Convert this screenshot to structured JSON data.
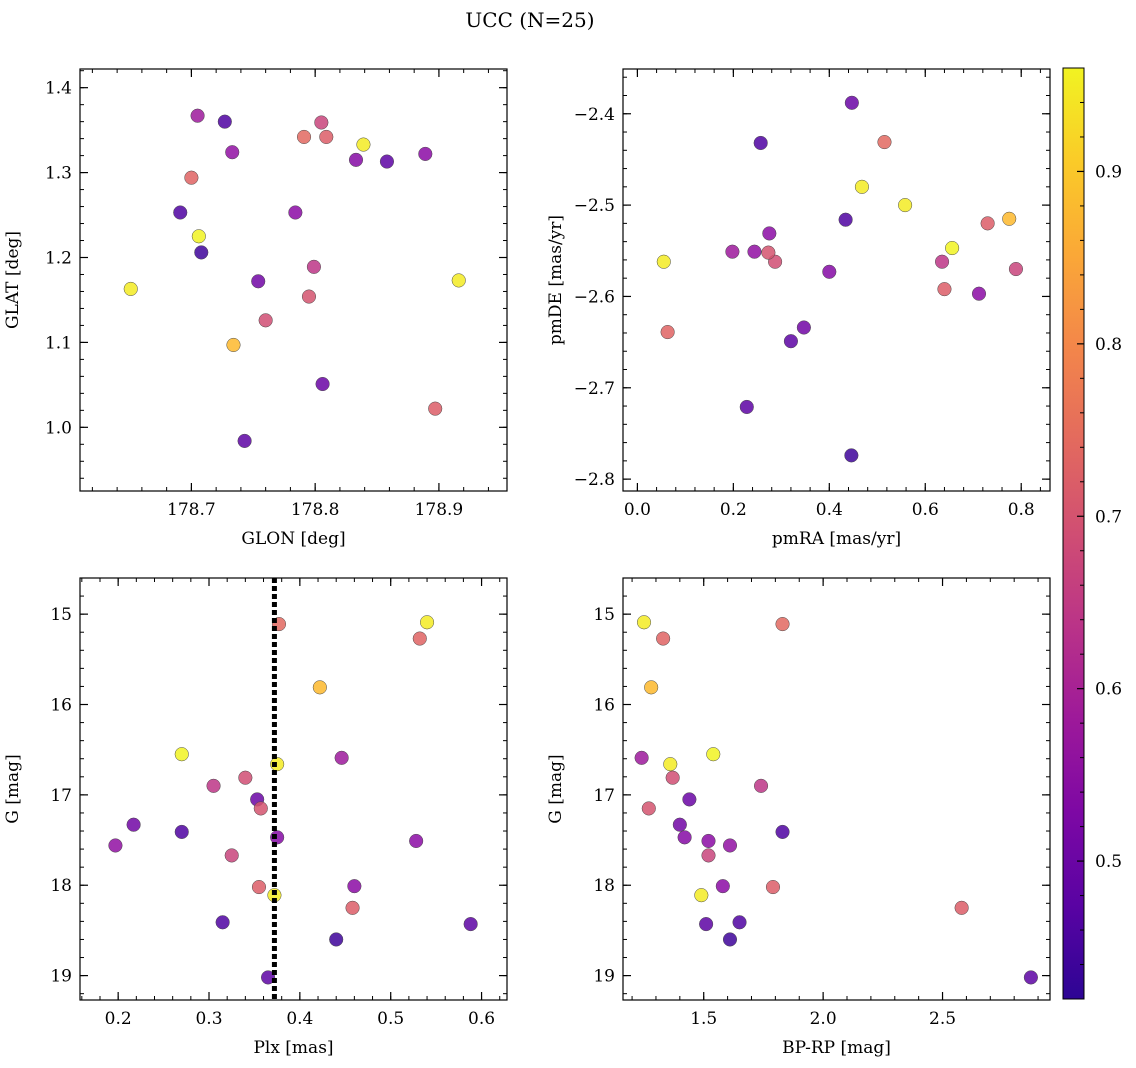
{
  "figure": {
    "title": "UCC (N=25)"
  },
  "colorbar": {
    "vmin": 0.42,
    "vmax": 0.96,
    "ticks": [
      0.5,
      0.6,
      0.7,
      0.8,
      0.9
    ],
    "cmap": "plasma"
  },
  "members": [
    {
      "glon": 178.651,
      "glat": 1.163,
      "pmra": 0.055,
      "pmde": -2.562,
      "plx": 0.54,
      "g": 15.09,
      "bprp": 1.25,
      "p": 0.95
    },
    {
      "glon": 178.705,
      "glat": 1.367,
      "pmra": 0.198,
      "pmde": -2.551,
      "plx": 0.446,
      "g": 16.59,
      "bprp": 1.24,
      "p": 0.58
    },
    {
      "glon": 178.727,
      "glat": 1.36,
      "pmra": 0.257,
      "pmde": -2.432,
      "plx": 0.315,
      "g": 18.41,
      "bprp": 1.65,
      "p": 0.46
    },
    {
      "glon": 178.733,
      "glat": 1.324,
      "pmra": 0.244,
      "pmde": -2.551,
      "plx": 0.197,
      "g": 17.56,
      "bprp": 1.61,
      "p": 0.56
    },
    {
      "glon": 178.7,
      "glat": 1.294,
      "pmra": 0.063,
      "pmde": -2.639,
      "plx": 0.532,
      "g": 15.27,
      "bprp": 1.33,
      "p": 0.73
    },
    {
      "glon": 178.691,
      "glat": 1.253,
      "pmra": 0.434,
      "pmde": -2.516,
      "plx": 0.27,
      "g": 17.41,
      "bprp": 1.83,
      "p": 0.46
    },
    {
      "glon": 178.706,
      "glat": 1.225,
      "pmra": 0.656,
      "pmde": -2.547,
      "plx": 0.27,
      "g": 16.55,
      "bprp": 1.54,
      "p": 0.96
    },
    {
      "glon": 178.708,
      "glat": 1.206,
      "pmra": 0.446,
      "pmde": -2.774,
      "plx": 0.44,
      "g": 18.6,
      "bprp": 1.61,
      "p": 0.44
    },
    {
      "glon": 178.734,
      "glat": 1.097,
      "pmra": 0.775,
      "pmde": -2.515,
      "plx": 0.422,
      "g": 15.81,
      "bprp": 1.28,
      "p": 0.88
    },
    {
      "glon": 178.743,
      "glat": 0.984,
      "pmra": 0.228,
      "pmde": -2.721,
      "plx": 0.365,
      "g": 19.02,
      "bprp": 2.87,
      "p": 0.48
    },
    {
      "glon": 178.754,
      "glat": 1.172,
      "pmra": 0.347,
      "pmde": -2.634,
      "plx": 0.217,
      "g": 17.33,
      "bprp": 1.4,
      "p": 0.51
    },
    {
      "glon": 178.76,
      "glat": 1.126,
      "pmra": 0.287,
      "pmde": -2.562,
      "plx": 0.34,
      "g": 16.81,
      "bprp": 1.37,
      "p": 0.69
    },
    {
      "glon": 178.784,
      "glat": 1.253,
      "pmra": 0.275,
      "pmde": -2.531,
      "plx": 0.46,
      "g": 18.01,
      "bprp": 1.58,
      "p": 0.55
    },
    {
      "glon": 178.791,
      "glat": 1.342,
      "pmra": 0.515,
      "pmde": -2.431,
      "plx": 0.377,
      "g": 15.11,
      "bprp": 1.83,
      "p": 0.74
    },
    {
      "glon": 178.795,
      "glat": 1.154,
      "pmra": 0.273,
      "pmde": -2.552,
      "plx": 0.357,
      "g": 17.15,
      "bprp": 1.27,
      "p": 0.7
    },
    {
      "glon": 178.799,
      "glat": 1.189,
      "pmra": 0.635,
      "pmde": -2.562,
      "plx": 0.305,
      "g": 16.9,
      "bprp": 1.74,
      "p": 0.64
    },
    {
      "glon": 178.805,
      "glat": 1.359,
      "pmra": 0.789,
      "pmde": -2.57,
      "plx": 0.325,
      "g": 17.67,
      "bprp": 1.52,
      "p": 0.67
    },
    {
      "glon": 178.806,
      "glat": 1.051,
      "pmra": 0.447,
      "pmde": -2.388,
      "plx": 0.353,
      "g": 17.05,
      "bprp": 1.44,
      "p": 0.5
    },
    {
      "glon": 178.809,
      "glat": 1.342,
      "pmra": 0.73,
      "pmde": -2.52,
      "plx": 0.355,
      "g": 18.02,
      "bprp": 1.79,
      "p": 0.72
    },
    {
      "glon": 178.839,
      "glat": 1.333,
      "pmra": 0.468,
      "pmde": -2.48,
      "plx": 0.375,
      "g": 16.66,
      "bprp": 1.36,
      "p": 0.95
    },
    {
      "glon": 178.833,
      "glat": 1.315,
      "pmra": 0.4,
      "pmde": -2.573,
      "plx": 0.375,
      "g": 17.47,
      "bprp": 1.42,
      "p": 0.54
    },
    {
      "glon": 178.858,
      "glat": 1.313,
      "pmra": 0.32,
      "pmde": -2.649,
      "plx": 0.588,
      "g": 18.43,
      "bprp": 1.51,
      "p": 0.48
    },
    {
      "glon": 178.889,
      "glat": 1.322,
      "pmra": 0.712,
      "pmde": -2.597,
      "plx": 0.528,
      "g": 17.51,
      "bprp": 1.52,
      "p": 0.55
    },
    {
      "glon": 178.897,
      "glat": 1.022,
      "pmra": 0.64,
      "pmde": -2.592,
      "plx": 0.458,
      "g": 18.25,
      "bprp": 2.58,
      "p": 0.72
    },
    {
      "glon": 178.916,
      "glat": 1.173,
      "pmra": 0.558,
      "pmde": -2.5,
      "plx": 0.372,
      "g": 18.11,
      "bprp": 1.49,
      "p": 0.95
    }
  ],
  "chart_data": [
    {
      "type": "scatter",
      "id": "ax-glon-glat",
      "xkey": "glon",
      "ykey": "glat",
      "xlabel": "GLON [deg]",
      "ylabel": "GLAT [deg]",
      "xlim": [
        178.61,
        178.955
      ],
      "ylim": [
        0.925,
        1.422
      ],
      "invert_y": false,
      "xticks": [
        178.7,
        178.8,
        178.9
      ],
      "xtick_labels": [
        "178.7",
        "178.8",
        "178.9"
      ],
      "yticks": [
        1.0,
        1.1,
        1.2,
        1.3,
        1.4
      ],
      "ytick_labels": [
        "1.0",
        "1.1",
        "1.2",
        "1.3",
        "1.4"
      ]
    },
    {
      "type": "scatter",
      "id": "ax-pm",
      "xkey": "pmra",
      "ykey": "pmde",
      "xlabel": "pmRA [mas/yr]",
      "ylabel": "pmDE [mas/yr]",
      "xlim": [
        -0.03,
        0.86
      ],
      "ylim": [
        -2.813,
        -2.351
      ],
      "invert_y": false,
      "xticks": [
        0.0,
        0.2,
        0.4,
        0.6,
        0.8
      ],
      "xtick_labels": [
        "0.0",
        "0.2",
        "0.4",
        "0.6",
        "0.8"
      ],
      "yticks": [
        -2.8,
        -2.7,
        -2.6,
        -2.5,
        -2.4
      ],
      "ytick_labels": [
        "−2.8",
        "−2.7",
        "−2.6",
        "−2.5",
        "−2.4"
      ]
    },
    {
      "type": "scatter",
      "id": "ax-plx-g",
      "xkey": "plx",
      "ykey": "g",
      "xlabel": "Plx [mas]",
      "ylabel": "G [mag]",
      "xlim": [
        0.158,
        0.628
      ],
      "ylim": [
        14.6,
        19.27
      ],
      "invert_y": true,
      "xticks": [
        0.2,
        0.3,
        0.4,
        0.5,
        0.6
      ],
      "xtick_labels": [
        "0.2",
        "0.3",
        "0.4",
        "0.5",
        "0.6"
      ],
      "yticks": [
        15,
        16,
        17,
        18,
        19
      ],
      "ytick_labels": [
        "15",
        "16",
        "17",
        "18",
        "19"
      ],
      "vline": 0.372
    },
    {
      "type": "scatter",
      "id": "ax-cmd",
      "xkey": "bprp",
      "ykey": "g",
      "xlabel": "BP-RP [mag]",
      "ylabel": "G [mag]",
      "xlim": [
        1.162,
        2.95
      ],
      "ylim": [
        14.6,
        19.27
      ],
      "invert_y": true,
      "xticks": [
        1.5,
        2.0,
        2.5
      ],
      "xtick_labels": [
        "1.5",
        "2.0",
        "2.5"
      ],
      "yticks": [
        15,
        16,
        17,
        18,
        19
      ],
      "ytick_labels": [
        "15",
        "16",
        "17",
        "18",
        "19"
      ]
    }
  ]
}
